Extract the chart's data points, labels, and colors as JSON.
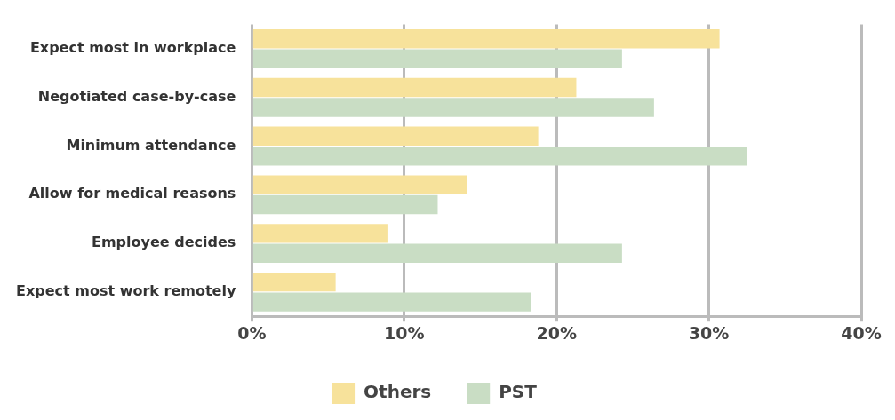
{
  "chart_data": {
    "type": "bar",
    "orientation": "horizontal",
    "categories": [
      "Expect most in workplace",
      "Negotiated case-by-case",
      "Minimum attendance",
      "Allow for medical reasons",
      "Employee decides",
      "Expect most work remotely"
    ],
    "series": [
      {
        "name": "Others",
        "color": "#f7e29b",
        "values": [
          30.7,
          21.3,
          18.8,
          14.1,
          8.9,
          5.5
        ]
      },
      {
        "name": "PST",
        "color": "#c9ddc4",
        "values": [
          24.3,
          26.4,
          32.5,
          12.2,
          24.3,
          18.3
        ]
      }
    ],
    "xlim": [
      0,
      40
    ],
    "xticks": [
      {
        "value": 0,
        "label": "0%"
      },
      {
        "value": 10,
        "label": "10%"
      },
      {
        "value": 20,
        "label": "20%"
      },
      {
        "value": 30,
        "label": "30%"
      },
      {
        "value": 40,
        "label": "40%"
      }
    ],
    "grid": "x",
    "legend": "bottom"
  }
}
